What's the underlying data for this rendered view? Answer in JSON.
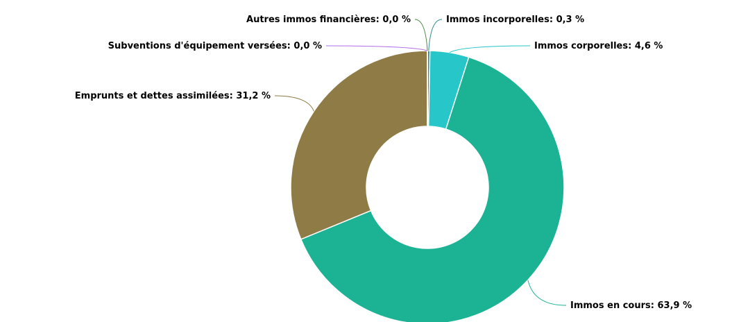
{
  "chart_data": {
    "type": "donut",
    "categories": [
      "Immos incorporelles",
      "Immos corporelles",
      "Immos en cours",
      "Emprunts et dettes assimilées",
      "Subventions d'équipement versées",
      "Autres immos financières"
    ],
    "values": [
      0.3,
      4.6,
      63.9,
      31.2,
      0.0,
      0.0
    ],
    "value_labels": [
      "0,3 %",
      "4,6 %",
      "63,9 %",
      "31,2 %",
      "0,0 %",
      "0,0 %"
    ],
    "colors": [
      "#2e8b8b",
      "#26c6c9",
      "#1bb394",
      "#8f7b45",
      "#b06ee8",
      "#4a8a4a"
    ]
  }
}
